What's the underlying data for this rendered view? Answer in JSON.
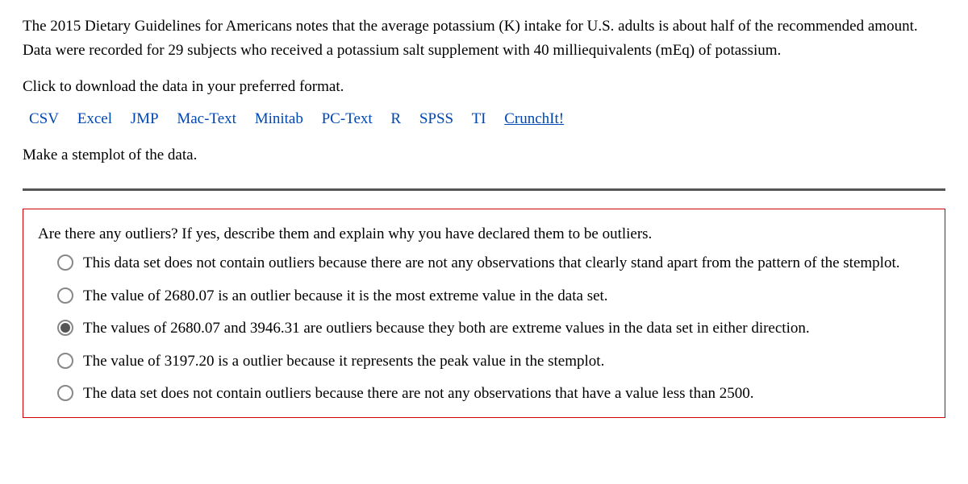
{
  "intro": "The 2015 Dietary Guidelines for Americans notes that the average potassium (K) intake for U.S. adults is about half of the recommended amount. Data were recorded for 29 subjects who received a potassium salt supplement with 40 milliequivalents (mEq) of potassium.",
  "download_prompt": "Click to download the data in your preferred format.",
  "download_links": {
    "csv": "CSV",
    "excel": "Excel",
    "jmp": "JMP",
    "mactext": "Mac-Text",
    "minitab": "Minitab",
    "pctext": "PC-Text",
    "r": "R",
    "spss": "SPSS",
    "ti": "TI",
    "crunchit": "CrunchIt!"
  },
  "stemplot_instruction": "Make a stemplot of the data.",
  "question": {
    "prompt": "Are there any outliers? If yes, describe them and explain why you have declared them to be outliers.",
    "options": [
      {
        "text": "This data set does not contain outliers because there are not any observations that clearly stand apart from the pattern of the stemplot.",
        "selected": false
      },
      {
        "text": "The value of 2680.07 is an outlier because it is the most extreme value in the data set.",
        "selected": false
      },
      {
        "text": "The values of 2680.07 and 3946.31 are outliers because they both are extreme values in the data set in either direction.",
        "selected": true
      },
      {
        "text": "The value of 3197.20 is a outlier because it represents the peak value in the stemplot.",
        "selected": false
      },
      {
        "text": "The data set does not contain outliers because there are not any observations that have a value less than 2500.",
        "selected": false
      }
    ]
  },
  "colors": {
    "link": "#0047b3",
    "question_border": "#cc0000",
    "divider": "#555555",
    "radio_border": "#888888",
    "radio_fill": "#555555",
    "text": "#000000",
    "background": "#ffffff"
  }
}
